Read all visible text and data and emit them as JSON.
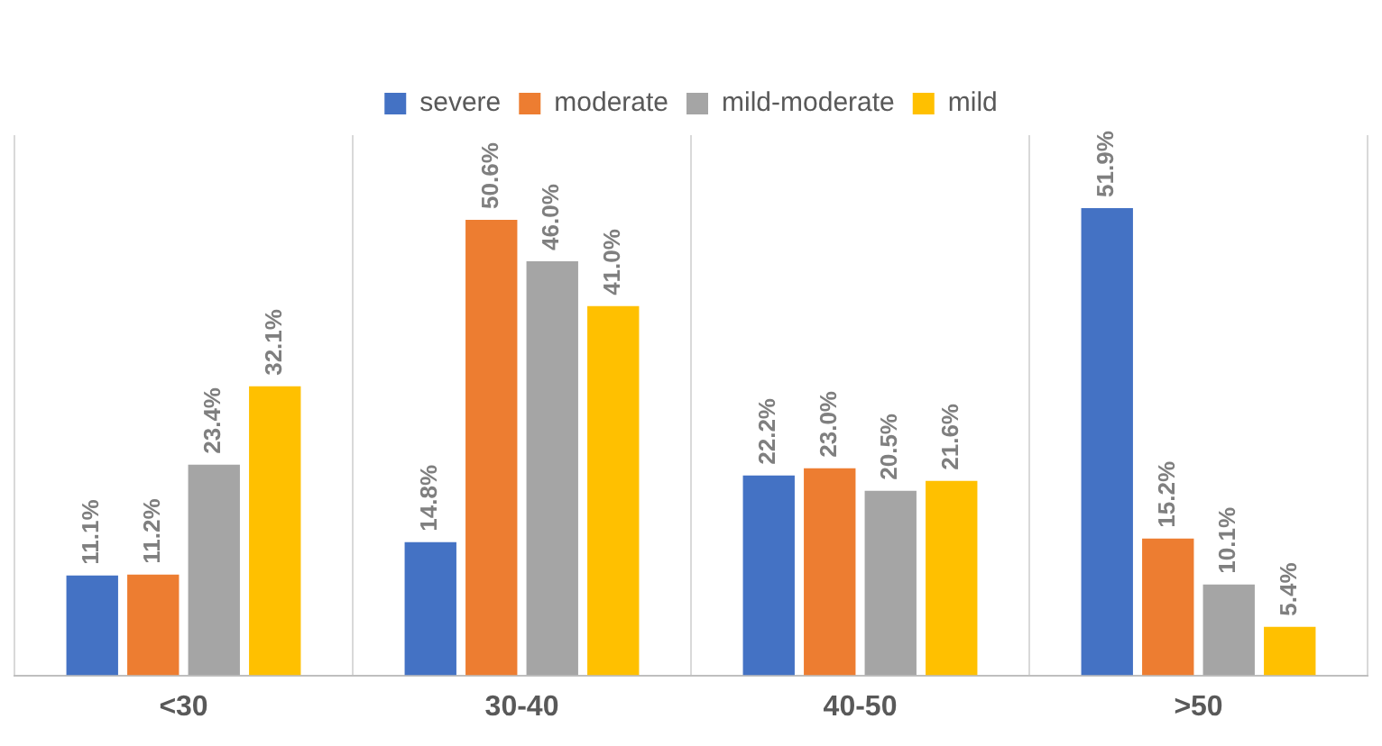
{
  "chart_data": {
    "type": "bar",
    "categories": [
      "<30",
      "30-40",
      "40-50",
      ">50"
    ],
    "series": [
      {
        "name": "severe",
        "color": "#4472c4",
        "values": [
          11.1,
          14.8,
          22.2,
          51.9
        ],
        "value_labels": [
          "11.1%",
          "14.8%",
          "22.2%",
          "51.9%"
        ]
      },
      {
        "name": "moderate",
        "color": "#ed7d31",
        "values": [
          11.2,
          50.6,
          23.0,
          15.2
        ],
        "value_labels": [
          "11.2%",
          "50.6%",
          "23.0%",
          "15.2%"
        ]
      },
      {
        "name": "mild-moderate",
        "color": "#a5a5a5",
        "values": [
          23.4,
          46.0,
          20.5,
          10.1
        ],
        "value_labels": [
          "23.4%",
          "46.0%",
          "20.5%",
          "10.1%"
        ]
      },
      {
        "name": "mild",
        "color": "#ffc000",
        "values": [
          32.1,
          41.0,
          21.6,
          5.4
        ],
        "value_labels": [
          "32.1%",
          "41.0%",
          "21.6%",
          "5.4%"
        ]
      }
    ],
    "grid": "x",
    "legend": "top",
    "tick_labels": "x"
  }
}
